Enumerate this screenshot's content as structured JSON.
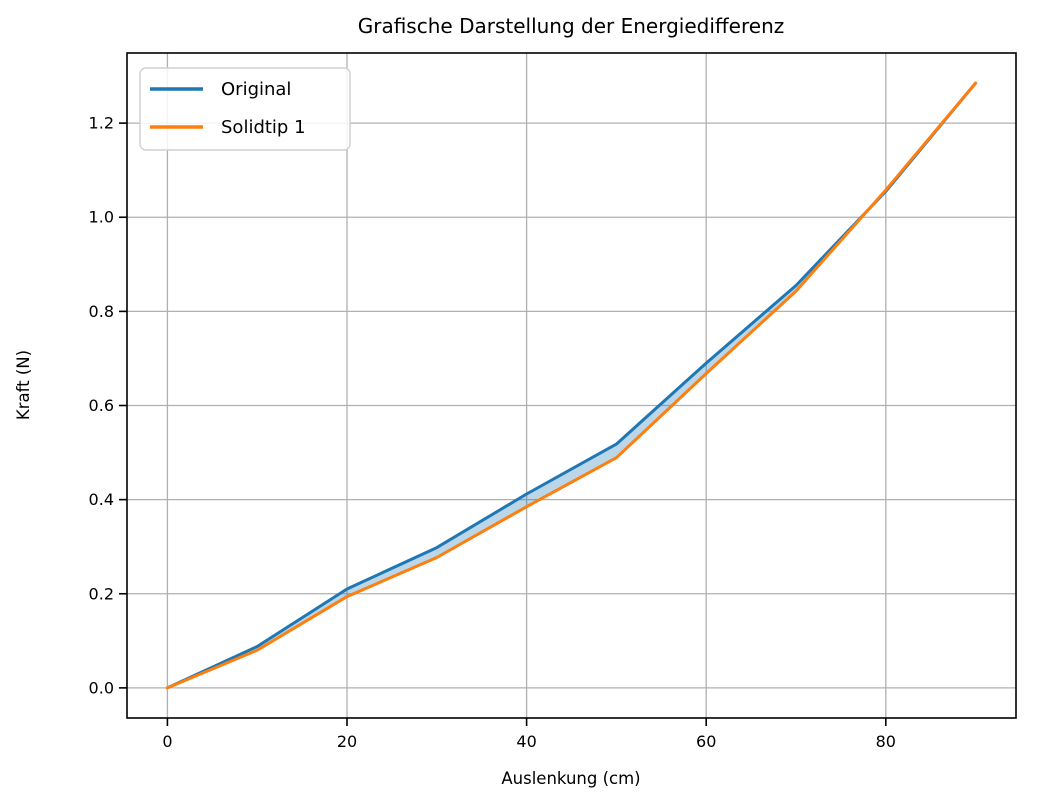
{
  "chart_data": {
    "type": "line",
    "title": "Grafische Darstellung der Energiedifferenz",
    "xlabel": "Auslenkung (cm)",
    "ylabel": "Kraft (N)",
    "x": [
      0,
      10,
      20,
      30,
      40,
      50,
      60,
      70,
      80,
      90
    ],
    "series": [
      {
        "name": "Original",
        "color": "#1f77b4",
        "values": [
          0,
          0.088,
          0.21,
          0.298,
          0.412,
          0.518,
          0.69,
          0.855,
          1.055,
          1.285
        ]
      },
      {
        "name": "Solidtip 1",
        "color": "#ff7f0e",
        "values": [
          0,
          0.08,
          0.194,
          0.277,
          0.385,
          0.489,
          0.668,
          0.843,
          1.058,
          1.285
        ]
      }
    ],
    "fill_between": {
      "upper": "Original",
      "lower": "Solidtip 1",
      "color": "#1f77b4",
      "opacity": 0.3
    },
    "xticks": [
      0,
      20,
      40,
      60,
      80
    ],
    "yticks": [
      0.0,
      0.2,
      0.4,
      0.6,
      0.8,
      1.0,
      1.2
    ],
    "xlim": [
      -4.5,
      94.5
    ],
    "ylim": [
      -0.064,
      1.349
    ],
    "grid": true,
    "legend_position": "upper left",
    "grid_color": "#b0b0b0",
    "spine_color": "#000000",
    "background_color": "#ffffff"
  }
}
